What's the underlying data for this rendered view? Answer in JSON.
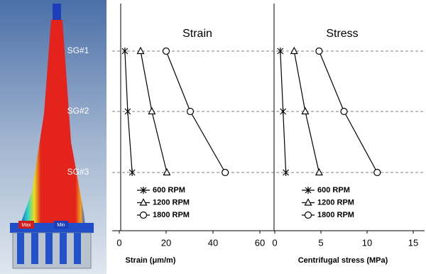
{
  "image": {
    "max_label": "Max",
    "min_label": "Min"
  },
  "chart_data": [
    {
      "type": "line",
      "title": "Strain",
      "xlabel": "Strain (μm/m)",
      "categories": [
        "SG#1",
        "SG#2",
        "SG#3"
      ],
      "xlim": [
        0,
        60
      ],
      "xticks": [
        0,
        20,
        40,
        60
      ],
      "series": [
        {
          "name": "600 RPM",
          "color": "#000000",
          "marker": "star",
          "values": [
            2.4,
            3.6,
            5.5
          ]
        },
        {
          "name": "1200 RPM",
          "color": "#000000",
          "marker": "triangle",
          "values": [
            9.1,
            13.9,
            20.3
          ]
        },
        {
          "name": "1800 RPM",
          "color": "#000000",
          "marker": "circle",
          "values": [
            20.0,
            30.3,
            45.2
          ]
        }
      ]
    },
    {
      "type": "line",
      "title": "Stress",
      "xlabel": "Centrifugal stress (MPa)",
      "xlim": [
        0,
        15
      ],
      "xticks": [
        0,
        5,
        10,
        15
      ],
      "series": [
        {
          "name": "600 RPM",
          "color": "#000000",
          "marker": "star",
          "values": [
            0.6,
            0.9,
            1.2
          ]
        },
        {
          "name": "1200 RPM",
          "color": "#000000",
          "marker": "triangle",
          "values": [
            2.1,
            3.3,
            4.8
          ]
        },
        {
          "name": "1800 RPM",
          "color": "#000000",
          "marker": "circle",
          "values": [
            4.8,
            7.5,
            11.1
          ]
        }
      ]
    }
  ]
}
